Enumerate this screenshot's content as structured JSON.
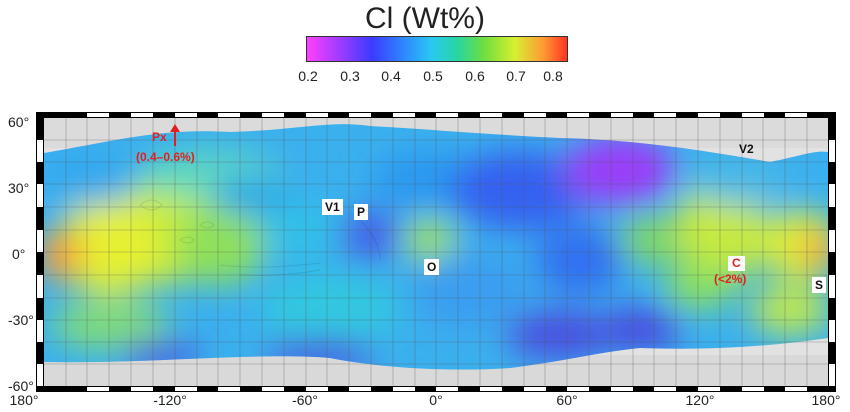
{
  "title": "Cl (Wt%)",
  "colorbar": {
    "ticks": [
      "0.2",
      "0.3",
      "0.4",
      "0.5",
      "0.6",
      "0.7",
      "0.8"
    ],
    "min": 0.2,
    "max": 0.83
  },
  "axes": {
    "lat_ticks": [
      "60°",
      "30°",
      "0°",
      "-30°",
      "-60°"
    ],
    "lon_ticks": [
      "180°",
      "-120°",
      "-60°",
      "0°",
      "60°",
      "120°",
      "180°"
    ]
  },
  "labels": {
    "v1": "V1",
    "p": "P",
    "o": "O",
    "v2": "V2",
    "s": "S",
    "px_name": "Px",
    "px_range": "(0.4–0.6%)",
    "c_name": "C",
    "c_range": "(<2%)"
  },
  "colors": {
    "annotation": "#e02020",
    "frame": "#000000"
  }
}
